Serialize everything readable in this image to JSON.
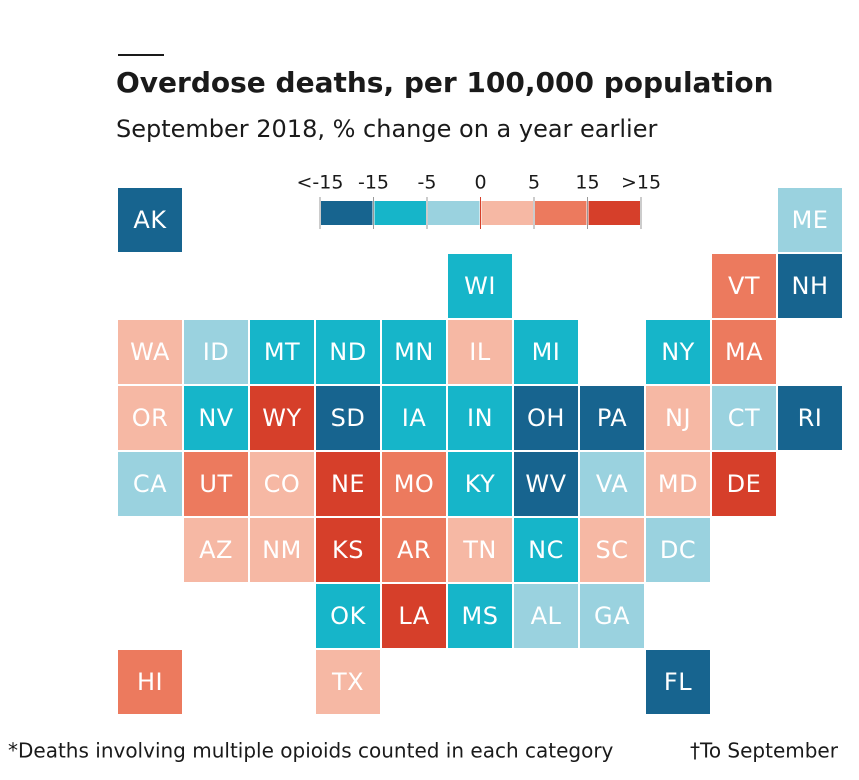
{
  "title": "Overdose deaths, per 100,000 population",
  "subtitle": "September 2018, % change on a year earlier",
  "legend": {
    "labels": [
      "<-15",
      "-15",
      "-5",
      "0",
      "5",
      "15",
      ">15"
    ],
    "colors": [
      "#17648f",
      "#16b5c9",
      "#9ad2df",
      "#f6b8a4",
      "#ec7a5e",
      "#d63f2a"
    ]
  },
  "rows": [
    [
      {
        "label": "AK",
        "bin": 0
      },
      null,
      null,
      null,
      null,
      null,
      null,
      null,
      null,
      null,
      {
        "label": "ME",
        "bin": 2
      }
    ],
    [
      null,
      null,
      null,
      null,
      null,
      {
        "label": "WI",
        "bin": 1
      },
      null,
      null,
      null,
      {
        "label": "VT",
        "bin": 4
      },
      {
        "label": "NH",
        "bin": 0
      }
    ],
    [
      {
        "label": "WA",
        "bin": 3
      },
      {
        "label": "ID",
        "bin": 2
      },
      {
        "label": "MT",
        "bin": 1
      },
      {
        "label": "ND",
        "bin": 1
      },
      {
        "label": "MN",
        "bin": 1
      },
      {
        "label": "IL",
        "bin": 3
      },
      {
        "label": "MI",
        "bin": 1
      },
      null,
      {
        "label": "NY",
        "bin": 1
      },
      {
        "label": "MA",
        "bin": 4
      },
      null
    ],
    [
      {
        "label": "OR",
        "bin": 3
      },
      {
        "label": "NV",
        "bin": 1
      },
      {
        "label": "WY",
        "bin": 5
      },
      {
        "label": "SD",
        "bin": 0
      },
      {
        "label": "IA",
        "bin": 1
      },
      {
        "label": "IN",
        "bin": 1
      },
      {
        "label": "OH",
        "bin": 0
      },
      {
        "label": "PA",
        "bin": 0
      },
      {
        "label": "NJ",
        "bin": 3
      },
      {
        "label": "CT",
        "bin": 2
      },
      {
        "label": "RI",
        "bin": 0
      }
    ],
    [
      {
        "label": "CA",
        "bin": 2
      },
      {
        "label": "UT",
        "bin": 4
      },
      {
        "label": "CO",
        "bin": 3
      },
      {
        "label": "NE",
        "bin": 5
      },
      {
        "label": "MO",
        "bin": 4
      },
      {
        "label": "KY",
        "bin": 1
      },
      {
        "label": "WV",
        "bin": 0
      },
      {
        "label": "VA",
        "bin": 2
      },
      {
        "label": "MD",
        "bin": 3
      },
      {
        "label": "DE",
        "bin": 5
      },
      null
    ],
    [
      null,
      {
        "label": "AZ",
        "bin": 3
      },
      {
        "label": "NM",
        "bin": 3
      },
      {
        "label": "KS",
        "bin": 5
      },
      {
        "label": "AR",
        "bin": 4
      },
      {
        "label": "TN",
        "bin": 3
      },
      {
        "label": "NC",
        "bin": 1
      },
      {
        "label": "SC",
        "bin": 3
      },
      {
        "label": "DC",
        "bin": 2
      },
      null,
      null
    ],
    [
      null,
      null,
      null,
      {
        "label": "OK",
        "bin": 1
      },
      {
        "label": "LA",
        "bin": 5
      },
      {
        "label": "MS",
        "bin": 1
      },
      {
        "label": "AL",
        "bin": 2
      },
      {
        "label": "GA",
        "bin": 2
      },
      null,
      null,
      null
    ],
    [
      {
        "label": "HI",
        "bin": 4
      },
      null,
      null,
      {
        "label": "TX",
        "bin": 3
      },
      null,
      null,
      null,
      null,
      {
        "label": "FL",
        "bin": 0
      },
      null,
      null
    ]
  ],
  "footnotes": [
    "*Deaths involving multiple opioids counted in each category",
    "†To September"
  ]
}
